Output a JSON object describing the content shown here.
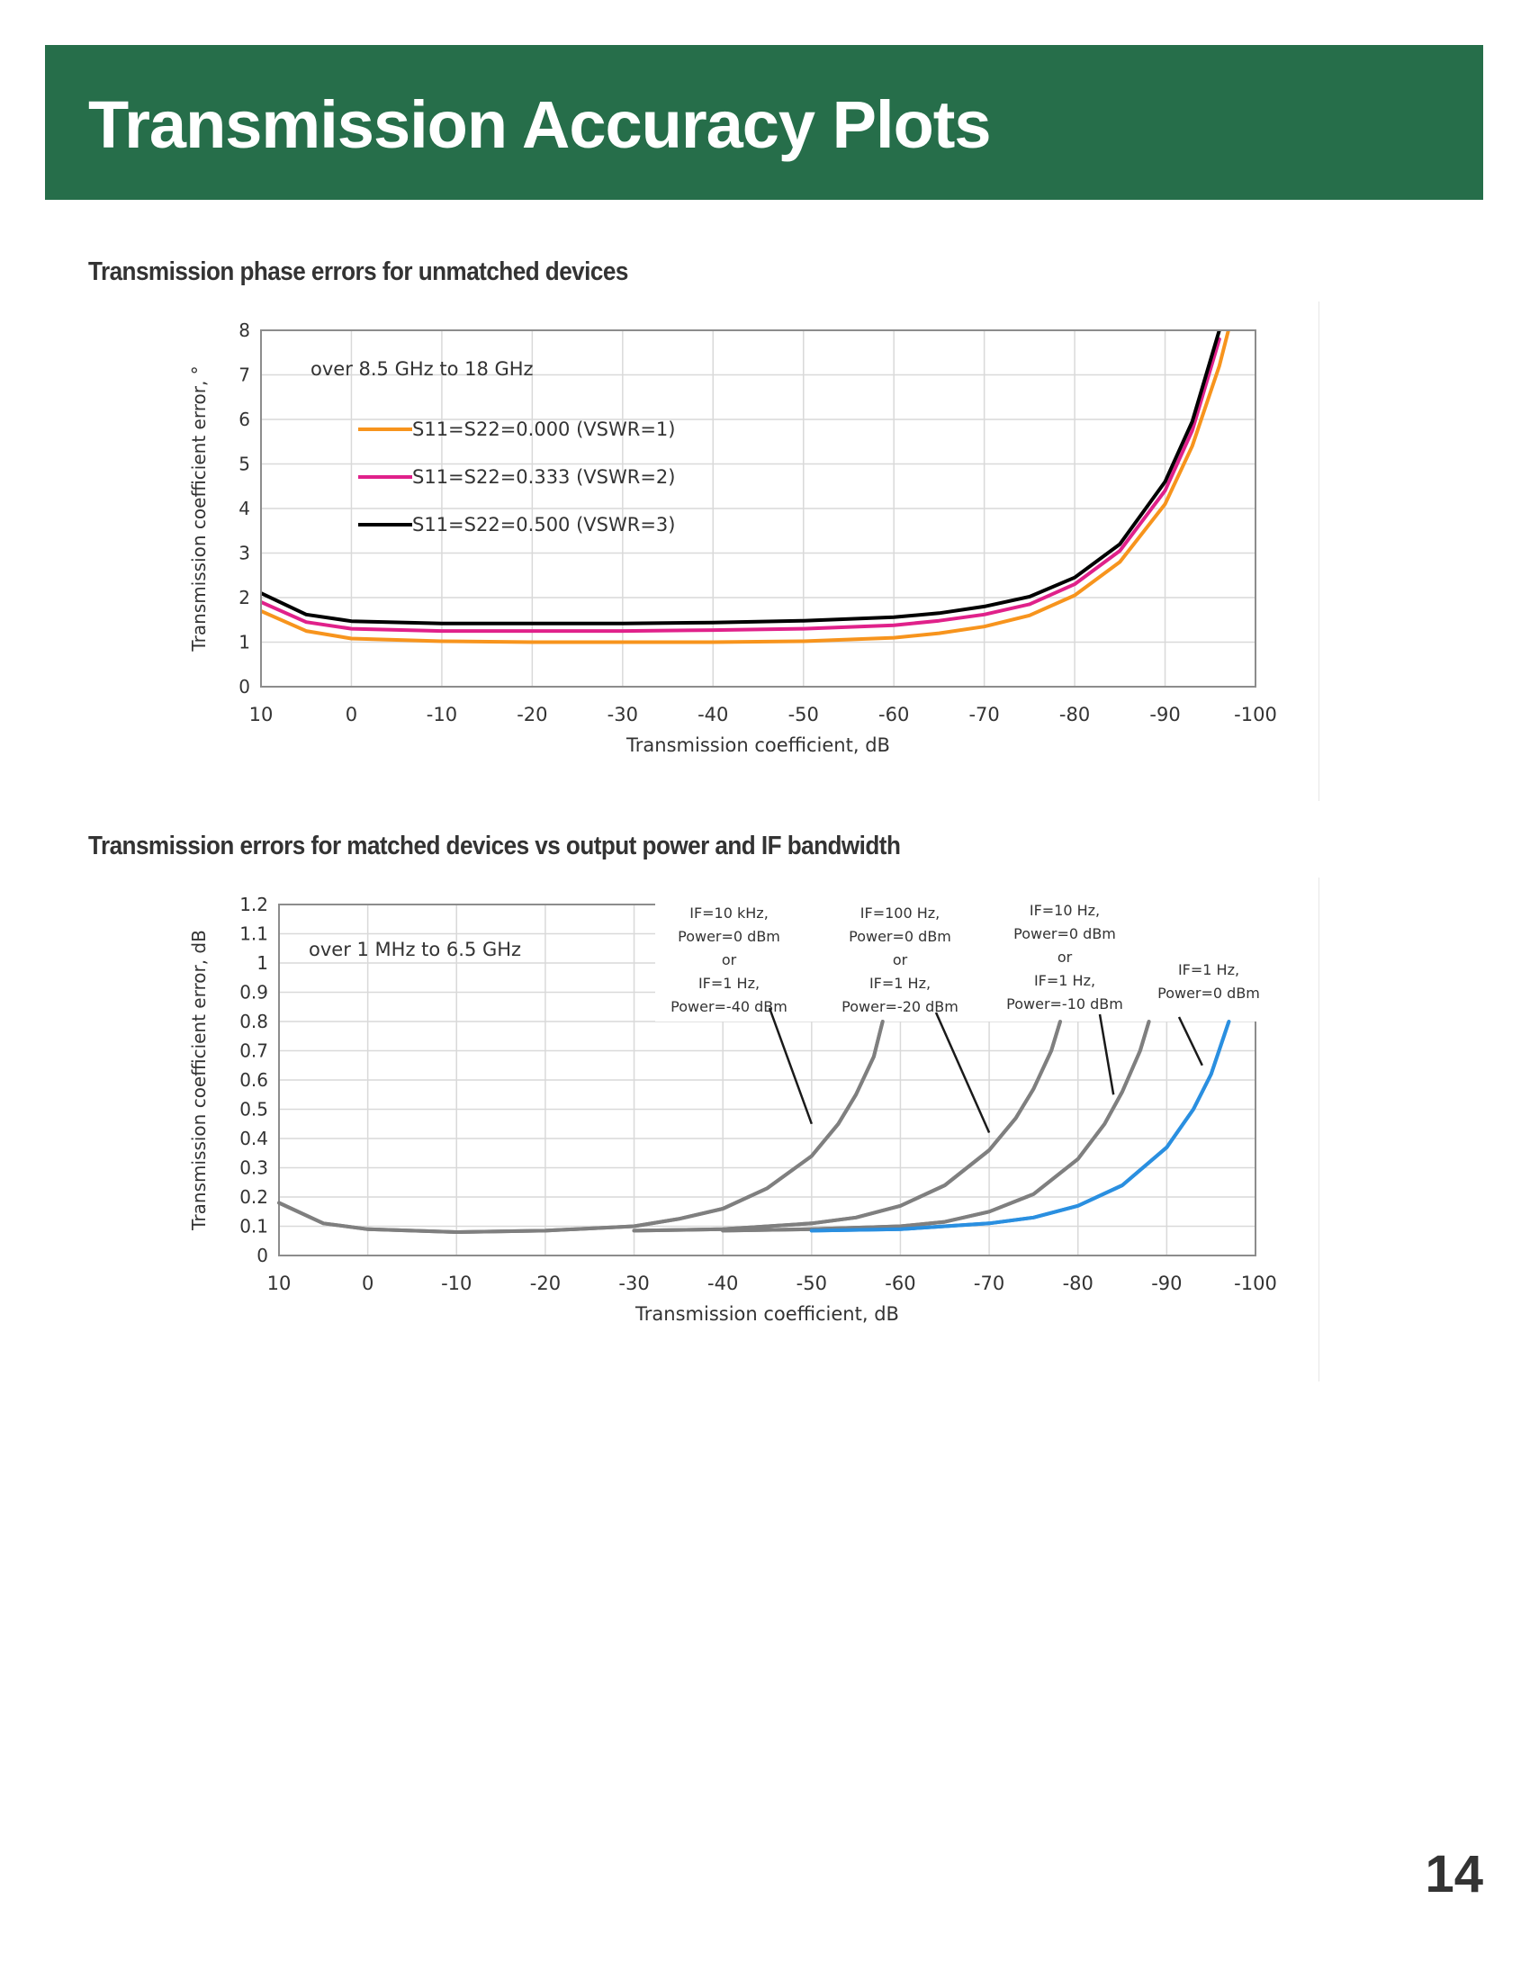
{
  "page": {
    "title": "Transmission Accuracy Plots",
    "page_number": "14",
    "banner_color": "#266e4a"
  },
  "chart_data": [
    {
      "type": "line",
      "title": "Transmission phase errors for unmatched devices",
      "annotation": "over 8.5 GHz to 18 GHz",
      "xlabel": "Transmission coefficient, dB",
      "ylabel": "Transmission coefficient error, °",
      "xlim": [
        10,
        -100
      ],
      "ylim": [
        0,
        8
      ],
      "xticks": [
        10,
        0,
        -10,
        -20,
        -30,
        -40,
        -50,
        -60,
        -70,
        -80,
        -90,
        -100
      ],
      "yticks": [
        0,
        1,
        2,
        3,
        4,
        5,
        6,
        7,
        8
      ],
      "grid": true,
      "legend": "top-left",
      "series": [
        {
          "name": "S11=S22=0.000 (VSWR=1)",
          "color": "#f7941d",
          "x": [
            10,
            5,
            0,
            -10,
            -20,
            -30,
            -40,
            -50,
            -60,
            -65,
            -70,
            -75,
            -80,
            -85,
            -90,
            -93,
            -96,
            -97
          ],
          "y": [
            1.7,
            1.25,
            1.08,
            1.02,
            1.0,
            1.0,
            1.0,
            1.02,
            1.1,
            1.2,
            1.35,
            1.6,
            2.05,
            2.8,
            4.1,
            5.4,
            7.2,
            8.0
          ]
        },
        {
          "name": "S11=S22=0.333 (VSWR=2)",
          "color": "#e0218a",
          "x": [
            10,
            5,
            0,
            -10,
            -20,
            -30,
            -40,
            -50,
            -60,
            -65,
            -70,
            -75,
            -80,
            -85,
            -90,
            -93,
            -96
          ],
          "y": [
            1.9,
            1.45,
            1.3,
            1.25,
            1.25,
            1.25,
            1.27,
            1.3,
            1.38,
            1.48,
            1.62,
            1.85,
            2.3,
            3.05,
            4.4,
            5.75,
            7.8
          ]
        },
        {
          "name": "S11=S22=0.500 (VSWR=3)",
          "color": "#000000",
          "x": [
            10,
            5,
            0,
            -10,
            -20,
            -30,
            -40,
            -50,
            -60,
            -65,
            -70,
            -75,
            -80,
            -85,
            -90,
            -93,
            -96
          ],
          "y": [
            2.1,
            1.62,
            1.47,
            1.42,
            1.42,
            1.42,
            1.44,
            1.48,
            1.56,
            1.65,
            1.8,
            2.02,
            2.45,
            3.2,
            4.6,
            5.95,
            8.0
          ]
        }
      ]
    },
    {
      "type": "line",
      "title": "Transmission errors for matched devices vs output power and IF bandwidth",
      "annotation": "over 1 MHz to 6.5 GHz",
      "xlabel": "Transmission coefficient, dB",
      "ylabel": "Transmission coefficient error, dB",
      "xlim": [
        10,
        -100
      ],
      "ylim": [
        0,
        1.2
      ],
      "xticks": [
        10,
        0,
        -10,
        -20,
        -30,
        -40,
        -50,
        -60,
        -70,
        -80,
        -90,
        -100
      ],
      "yticks": [
        0,
        0.1,
        0.2,
        0.3,
        0.4,
        0.5,
        0.6,
        0.7,
        0.8,
        0.9,
        1,
        1.1,
        1.2
      ],
      "grid": true,
      "series": [
        {
          "name": "IF=10 kHz, Power=0 dBm or IF=1 Hz, Power=-40 dBm",
          "color": "#7f7f7f",
          "x": [
            10,
            5,
            0,
            -10,
            -20,
            -30,
            -35,
            -40,
            -45,
            -50,
            -53,
            -55,
            -57,
            -58
          ],
          "y": [
            0.18,
            0.11,
            0.09,
            0.08,
            0.085,
            0.1,
            0.125,
            0.16,
            0.23,
            0.34,
            0.45,
            0.55,
            0.68,
            0.8
          ]
        },
        {
          "name": "IF=100 Hz, Power=0 dBm or IF=1 Hz, Power=-20 dBm",
          "color": "#7f7f7f",
          "x": [
            -30,
            -40,
            -50,
            -55,
            -60,
            -65,
            -70,
            -73,
            -75,
            -77,
            -78
          ],
          "y": [
            0.085,
            0.09,
            0.11,
            0.13,
            0.17,
            0.24,
            0.36,
            0.47,
            0.57,
            0.7,
            0.8
          ]
        },
        {
          "name": "IF=10 Hz, Power=0 dBm or IF=1 Hz, Power=-10 dBm",
          "color": "#7f7f7f",
          "x": [
            -40,
            -50,
            -60,
            -65,
            -70,
            -75,
            -80,
            -83,
            -85,
            -87,
            -88
          ],
          "y": [
            0.085,
            0.09,
            0.1,
            0.115,
            0.15,
            0.21,
            0.33,
            0.45,
            0.56,
            0.7,
            0.8
          ]
        },
        {
          "name": "IF=1 Hz, Power=0 dBm",
          "color": "#2a8fe0",
          "x": [
            -50,
            -60,
            -70,
            -75,
            -80,
            -85,
            -90,
            -93,
            -95,
            -97
          ],
          "y": [
            0.085,
            0.09,
            0.11,
            0.13,
            0.17,
            0.24,
            0.37,
            0.5,
            0.62,
            0.8
          ]
        }
      ],
      "callouts": [
        {
          "lines": [
            "IF=10 kHz,",
            "Power=0 dBm",
            "or",
            "IF=1 Hz,",
            "Power=-40 dBm"
          ]
        },
        {
          "lines": [
            "IF=100 Hz,",
            "Power=0 dBm",
            "or",
            "IF=1 Hz,",
            "Power=-20 dBm"
          ]
        },
        {
          "lines": [
            "IF=10 Hz,",
            "Power=0 dBm",
            "or",
            "IF=1 Hz,",
            "Power=-10 dBm"
          ]
        },
        {
          "lines": [
            "IF=1 Hz,",
            "Power=0 dBm"
          ]
        }
      ]
    }
  ]
}
